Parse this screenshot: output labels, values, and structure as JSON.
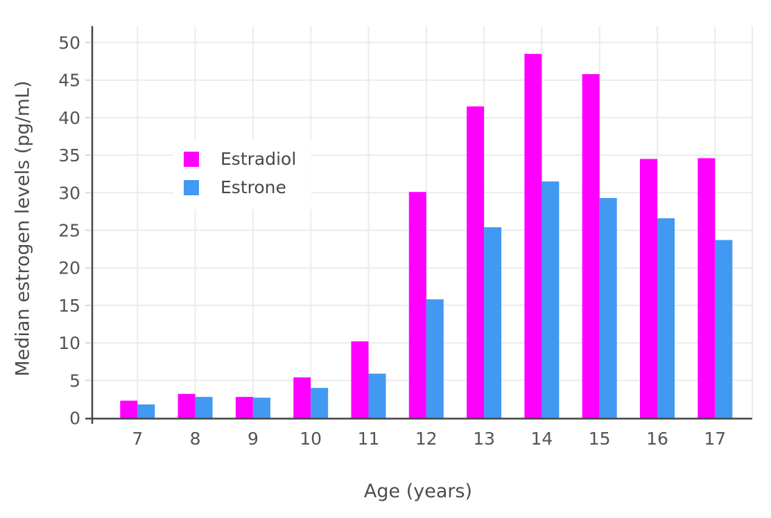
{
  "chart_data": {
    "type": "bar",
    "title": "",
    "xlabel": "Age (years)",
    "ylabel": "Median estrogen levels (pg/mL)",
    "categories": [
      7,
      8,
      9,
      10,
      11,
      12,
      13,
      14,
      15,
      16,
      17
    ],
    "series": [
      {
        "name": "Estradiol",
        "color": "#FF00FF",
        "values": [
          2.3,
          3.2,
          2.8,
          5.4,
          10.2,
          30.1,
          41.5,
          48.5,
          45.8,
          34.5,
          34.6
        ]
      },
      {
        "name": "Estrone",
        "color": "#4199F2",
        "values": [
          1.8,
          2.8,
          2.7,
          4.0,
          5.9,
          15.8,
          25.4,
          31.5,
          29.3,
          26.6,
          23.7
        ]
      }
    ],
    "ylim": [
      0,
      52
    ],
    "yticks": [
      0,
      5,
      10,
      15,
      20,
      25,
      30,
      35,
      40,
      45,
      50
    ],
    "grid": true,
    "legend_position": "inside-top-left",
    "bar_mode": "grouped"
  },
  "colors": {
    "background": "#FFFFFF",
    "grid": "#EBEBEB",
    "axis_line": "#444444",
    "tick_dash": "#D8D8D8",
    "tick_text": "#545454"
  }
}
